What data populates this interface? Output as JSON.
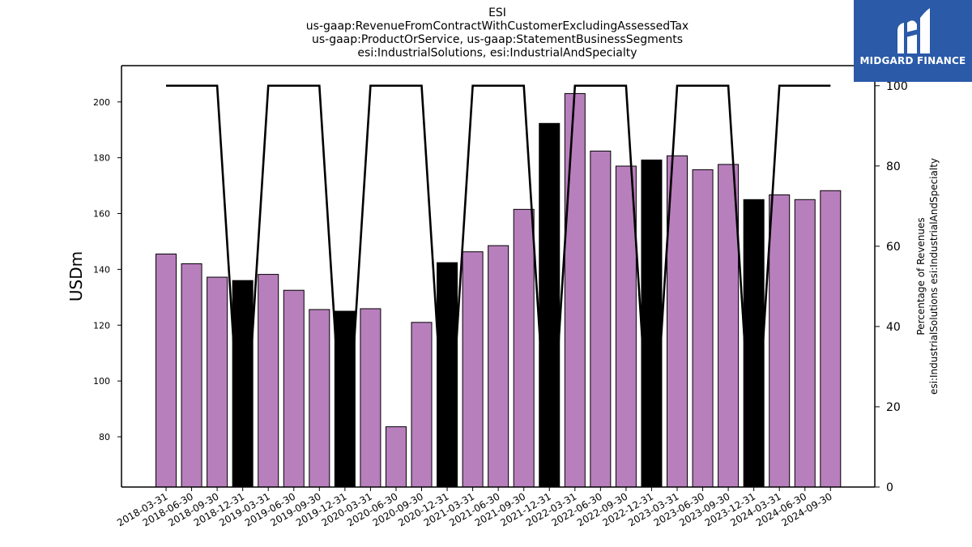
{
  "chart_data": {
    "type": "bar",
    "title_lines": [
      "ESI",
      "us-gaap:RevenueFromContractWithCustomerExcludingAssessedTax",
      "us-gaap:ProductOrService, us-gaap:StatementBusinessSegments",
      "esi:IndustrialSolutions, esi:IndustrialAndSpecialty"
    ],
    "ylabel": "USDm",
    "y2label_lines": [
      "Percentage of Revenues",
      "esi:IndustrialSolutions esi:IndustrialAndSpecialty"
    ],
    "ylim": [
      62,
      213
    ],
    "y2lim": [
      0,
      105
    ],
    "yticks": [
      80,
      100,
      120,
      140,
      160,
      180,
      200
    ],
    "y2ticks": [
      0,
      20,
      40,
      60,
      80,
      100
    ],
    "categories": [
      "2018-03-31",
      "2018-06-30",
      "2018-09-30",
      "2018-12-31",
      "2019-03-31",
      "2019-06-30",
      "2019-09-30",
      "2019-12-31",
      "2020-03-31",
      "2020-06-30",
      "2020-09-30",
      "2020-12-31",
      "2021-03-31",
      "2021-06-30",
      "2021-09-30",
      "2021-12-31",
      "2022-03-31",
      "2022-06-30",
      "2022-09-30",
      "2022-12-31",
      "2023-03-31",
      "2023-06-30",
      "2023-09-30",
      "2023-12-31",
      "2024-03-31",
      "2024-06-30",
      "2024-09-30"
    ],
    "values": [
      145.5,
      142,
      137.2,
      136,
      138.2,
      132.5,
      125.6,
      125,
      125.9,
      83.6,
      121,
      142.4,
      146.3,
      148.5,
      161.5,
      192.3,
      203,
      182.4,
      177,
      179.2,
      180.7,
      175.7,
      177.6,
      165,
      166.7,
      165,
      168.2
    ],
    "bar_colors": [
      "#b87fbd",
      "#b87fbd",
      "#b87fbd",
      "#000000",
      "#b87fbd",
      "#b87fbd",
      "#b87fbd",
      "#000000",
      "#b87fbd",
      "#b87fbd",
      "#b87fbd",
      "#000000",
      "#b87fbd",
      "#b87fbd",
      "#b87fbd",
      "#000000",
      "#b87fbd",
      "#b87fbd",
      "#b87fbd",
      "#000000",
      "#b87fbd",
      "#b87fbd",
      "#b87fbd",
      "#000000",
      "#b87fbd",
      "#b87fbd",
      "#b87fbd"
    ],
    "percentage_line": [
      100,
      100,
      100,
      0,
      100,
      100,
      100,
      0,
      100,
      100,
      100,
      0,
      100,
      100,
      100,
      0,
      100,
      100,
      100,
      0,
      100,
      100,
      100,
      0,
      100,
      100,
      100
    ],
    "grid": false
  },
  "logo": {
    "text": "MIDGARD FINANCE",
    "color": "#2a5aa8"
  }
}
